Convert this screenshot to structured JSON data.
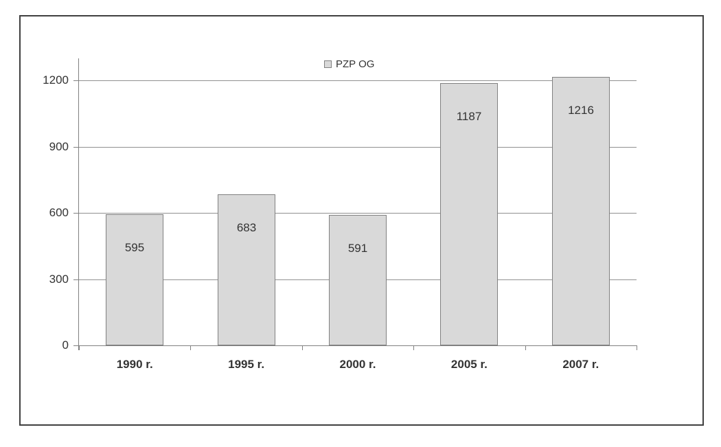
{
  "chart_data": {
    "type": "bar",
    "title": "",
    "categories": [
      "1990 r.",
      "1995 r.",
      "2000 r.",
      "2005 r.",
      "2007 r."
    ],
    "series": [
      {
        "name": "PZP OG",
        "values": [
          595,
          683,
          591,
          1187,
          1216
        ]
      }
    ],
    "legend": {
      "label": "PZP OG",
      "position": "top-center"
    },
    "ylim": [
      0,
      1300
    ],
    "yticks": [
      0,
      300,
      600,
      900,
      1200
    ],
    "grid": "horizontal",
    "colors": {
      "bar_fill": "#d9d9d9",
      "bar_border": "#808080",
      "gridline": "#909090",
      "axis": "#808080",
      "text": "#333333",
      "frame_border": "#3f3f3f",
      "background": "#ffffff"
    }
  }
}
